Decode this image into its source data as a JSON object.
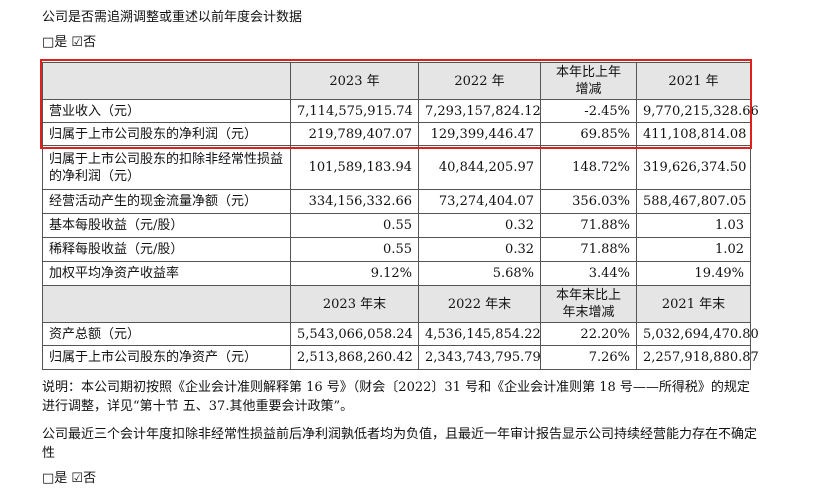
{
  "question1": "公司是否需追溯调整或重述以前年度会计数据",
  "options1": "□是 ☑否",
  "table": {
    "header": [
      "",
      "2023 年",
      "2022 年",
      "本年比上年增减",
      "2021 年"
    ],
    "rows": [
      [
        "营业收入（元）",
        "7,114,575,915.74",
        "7,293,157,824.12",
        "-2.45%",
        "9,770,215,328.66"
      ],
      [
        "归属于上市公司股东的净利润（元）",
        "219,789,407.07",
        "129,399,446.47",
        "69.85%",
        "411,108,814.08"
      ],
      [
        "归属于上市公司股东的扣除非经常性损益的净利润（元）",
        "101,589,183.94",
        "40,844,205.97",
        "148.72%",
        "319,626,374.50"
      ],
      [
        "经营活动产生的现金流量净额（元）",
        "334,156,332.66",
        "73,274,404.07",
        "356.03%",
        "588,467,807.05"
      ],
      [
        "基本每股收益（元/股）",
        "0.55",
        "0.32",
        "71.88%",
        "1.03"
      ],
      [
        "稀释每股收益（元/股）",
        "0.55",
        "0.32",
        "71.88%",
        "1.02"
      ],
      [
        "加权平均净资产收益率",
        "9.12%",
        "5.68%",
        "3.44%",
        "19.49%"
      ]
    ],
    "header2": [
      "",
      "2023 年末",
      "2022 年末",
      "本年末比上年末增减",
      "2021 年末"
    ],
    "rows2": [
      [
        "资产总额（元）",
        "5,543,066,058.24",
        "4,536,145,854.22",
        "22.20%",
        "5,032,694,470.80"
      ],
      [
        "归属于上市公司股东的净资产（元）",
        "2,513,868,260.42",
        "2,343,743,795.79",
        "7.26%",
        "2,257,918,880.87"
      ]
    ]
  },
  "note": "说明：本公司期初按照《企业会计准则解释第 16 号》（财会〔2022〕31 号和《企业会计准则第 18 号——所得税》的规定进行调整，详见“第十节 五、37.其他重要会计政策”。",
  "question2": "公司最近三个会计年度扣除非经常性损益前后净利润孰低者均为负值，且最近一年审计报告显示公司持续经营能力存在不确定性",
  "options2": "□是 ☑否"
}
